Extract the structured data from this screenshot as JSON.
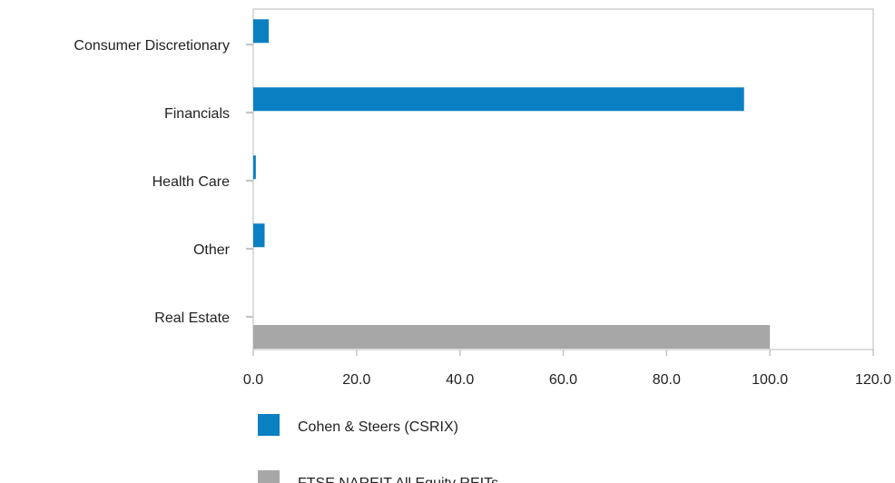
{
  "chart_data": {
    "type": "bar",
    "orientation": "horizontal",
    "categories": [
      "Consumer Discretionary",
      "Financials",
      "Health Care",
      "Other",
      "Real Estate"
    ],
    "series": [
      {
        "name": "Cohen & Steers (CSRIX)",
        "color": "#0a7fc2",
        "values": [
          3.0,
          95.0,
          0.5,
          2.2,
          0.0
        ]
      },
      {
        "name": "FTSE NAREIT All Equity REITs",
        "color": "#a7a7a7",
        "values": [
          0.0,
          0.0,
          0.0,
          0.0,
          100.0
        ]
      }
    ],
    "x_ticks": [
      "0.0",
      "20.0",
      "40.0",
      "60.0",
      "80.0",
      "100.0",
      "120.0"
    ],
    "xlim": [
      0,
      120
    ],
    "title": "",
    "xlabel": "",
    "ylabel": "",
    "grid": false,
    "legend_position": "bottom"
  }
}
